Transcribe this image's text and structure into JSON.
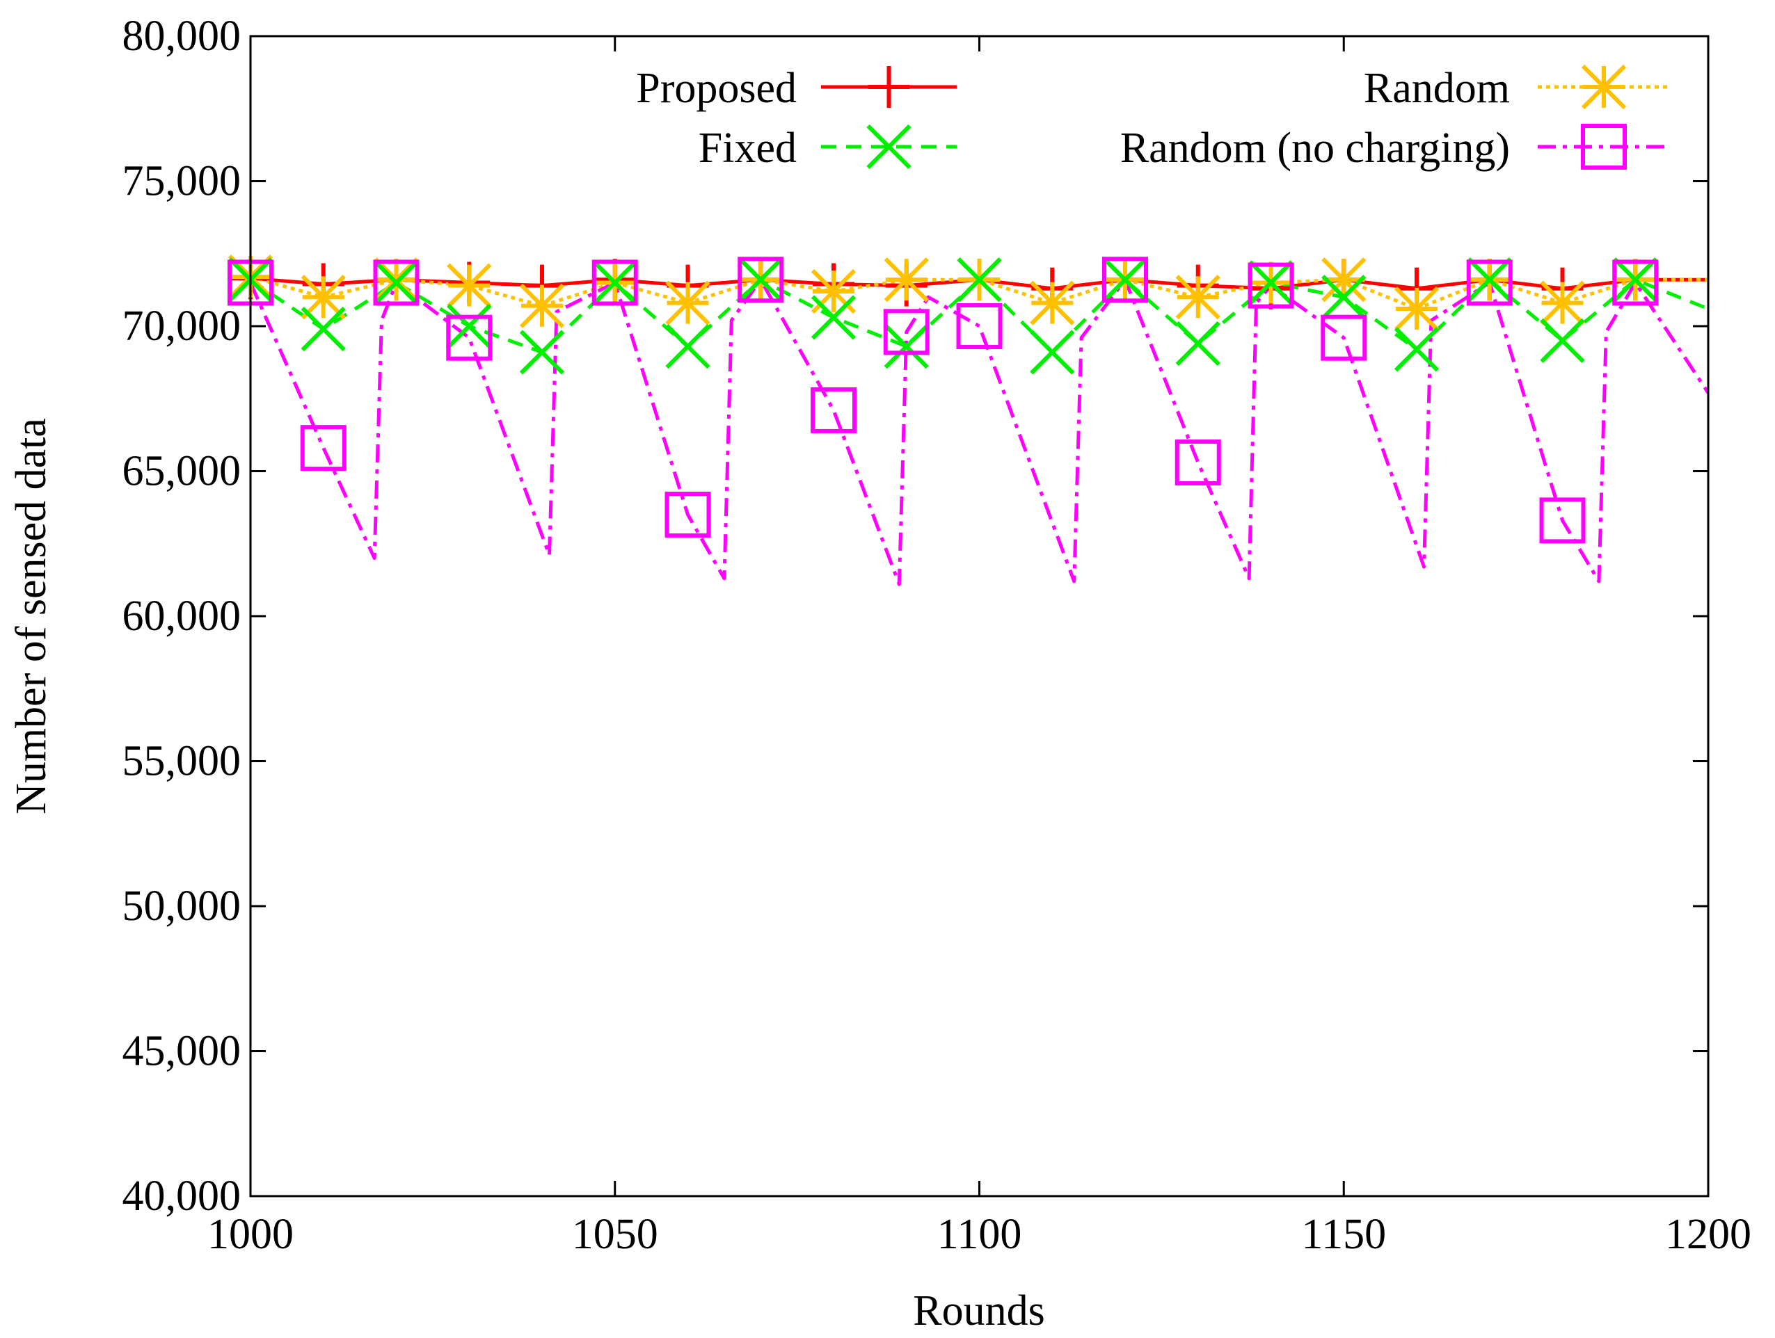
{
  "chart_data": {
    "type": "line",
    "title": "",
    "xlabel": "Rounds",
    "ylabel": "Number of sensed data",
    "xlim": [
      1000,
      1200
    ],
    "ylim": [
      40000,
      80000
    ],
    "x_ticks": [
      1000,
      1050,
      1100,
      1150,
      1200
    ],
    "x_tick_labels": [
      "1000",
      "1050",
      "1100",
      "1150",
      "1200"
    ],
    "y_ticks": [
      40000,
      45000,
      50000,
      55000,
      60000,
      65000,
      70000,
      75000,
      80000
    ],
    "y_tick_labels": [
      "40,000",
      "45,000",
      "50,000",
      "55,000",
      "60,000",
      "65,000",
      "70,000",
      "75,000",
      "80,000"
    ],
    "grid": false,
    "legend_position": "top",
    "series": [
      {
        "name": "Proposed",
        "color": "#ff0000",
        "dash": "solid",
        "marker": "plus",
        "x": [
          1000,
          1010,
          1020,
          1030,
          1040,
          1050,
          1060,
          1070,
          1080,
          1090,
          1100,
          1110,
          1120,
          1130,
          1140,
          1150,
          1160,
          1170,
          1180,
          1190,
          1200
        ],
        "values": [
          71650,
          71450,
          71600,
          71500,
          71400,
          71600,
          71400,
          71600,
          71450,
          71400,
          71600,
          71300,
          71600,
          71400,
          71300,
          71600,
          71300,
          71600,
          71300,
          71600,
          71600
        ]
      },
      {
        "name": "Random",
        "color": "#ffc000",
        "dash": "dotted",
        "marker": "star",
        "x": [
          1000,
          1010,
          1020,
          1030,
          1040,
          1050,
          1060,
          1070,
          1080,
          1090,
          1100,
          1110,
          1120,
          1130,
          1140,
          1150,
          1160,
          1170,
          1180,
          1190,
          1200
        ],
        "values": [
          71700,
          71000,
          71600,
          71400,
          70700,
          71500,
          70800,
          71600,
          71200,
          71600,
          71600,
          70800,
          71600,
          71000,
          71500,
          71600,
          70600,
          71600,
          70800,
          71600,
          71600
        ]
      },
      {
        "name": "Fixed",
        "color": "#00ee00",
        "dash": "dashed",
        "marker": "cross",
        "x": [
          1000,
          1010,
          1020,
          1030,
          1040,
          1050,
          1060,
          1070,
          1080,
          1090,
          1100,
          1110,
          1120,
          1130,
          1140,
          1150,
          1160,
          1170,
          1180,
          1190,
          1200
        ],
        "values": [
          71600,
          69900,
          71500,
          70000,
          69100,
          71500,
          69300,
          71600,
          70300,
          69300,
          71600,
          69100,
          71600,
          69400,
          71500,
          71000,
          69200,
          71600,
          69500,
          71600,
          70600
        ]
      },
      {
        "name": "Random (no charging)",
        "color": "#ff00ff",
        "dash": "dash-dot",
        "marker": "square",
        "x": [
          1000,
          1010,
          1017,
          1018,
          1020,
          1030,
          1041,
          1042,
          1050,
          1060,
          1065,
          1066,
          1070,
          1080,
          1089,
          1090,
          1093,
          1100,
          1113,
          1114,
          1120,
          1130,
          1137,
          1138,
          1140,
          1150,
          1161,
          1162,
          1170,
          1180,
          1185,
          1186,
          1190,
          1200
        ],
        "values": [
          71500,
          65800,
          62000,
          70200,
          71500,
          69600,
          62100,
          70500,
          71500,
          63500,
          61300,
          70200,
          71600,
          67100,
          61100,
          69800,
          71000,
          70000,
          61200,
          69600,
          71600,
          65300,
          61300,
          70800,
          71400,
          69600,
          61700,
          70200,
          71500,
          63300,
          61200,
          69800,
          71500,
          67700
        ]
      }
    ]
  }
}
